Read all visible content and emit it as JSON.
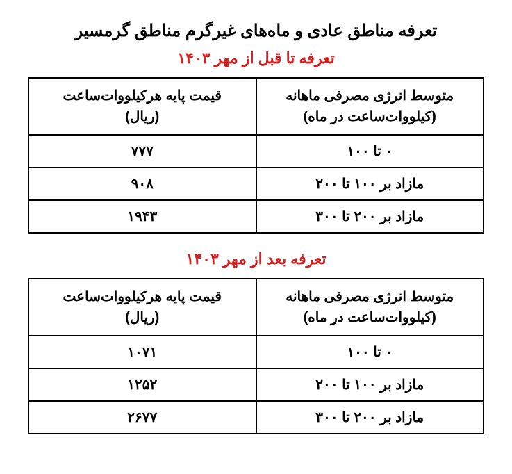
{
  "main_title": "تعرفه مناطق عادی و ماه‌های غیرگرم مناطق گرمسیر",
  "tables": [
    {
      "subtitle": "تعرفه تا قبل از مهر ۱۴۰۳",
      "header_consumption_l1": "متوسط انرژی مصرفی ماهانه",
      "header_consumption_l2": "(کیلووات‌ساعت در ماه)",
      "header_price_l1": "قیمت پایه هرکیلووات‌ساعت",
      "header_price_l2": "(ریال)",
      "rows": [
        {
          "range": "۰ تا ۱۰۰",
          "price": "۷۷۷"
        },
        {
          "range": "مازاد بر ۱۰۰ تا ۲۰۰",
          "price": "۹۰۸"
        },
        {
          "range": "مازاد بر ۲۰۰ تا ۳۰۰",
          "price": "۱۹۴۳"
        }
      ]
    },
    {
      "subtitle": "تعرفه بعد از مهر ۱۴۰۳",
      "header_consumption_l1": "متوسط انرژی مصرفی ماهانه",
      "header_consumption_l2": "(کیلووات‌ساعت در ماه)",
      "header_price_l1": "قیمت پایه هرکیلووات‌ساعت",
      "header_price_l2": "(ریال)",
      "rows": [
        {
          "range": "۰ تا ۱۰۰",
          "price": "۱۰۷۱"
        },
        {
          "range": "مازاد بر ۱۰۰ تا ۲۰۰",
          "price": "۱۲۵۲"
        },
        {
          "range": "مازاد بر ۲۰۰ تا ۳۰۰",
          "price": "۲۶۷۷"
        }
      ]
    }
  ],
  "colors": {
    "title": "#000000",
    "subtitle": "#d32020",
    "border": "#000000",
    "text": "#000000",
    "background": "#ffffff"
  },
  "typography": {
    "main_title_pt": 24,
    "subtitle_pt": 22,
    "cell_pt": 20
  }
}
